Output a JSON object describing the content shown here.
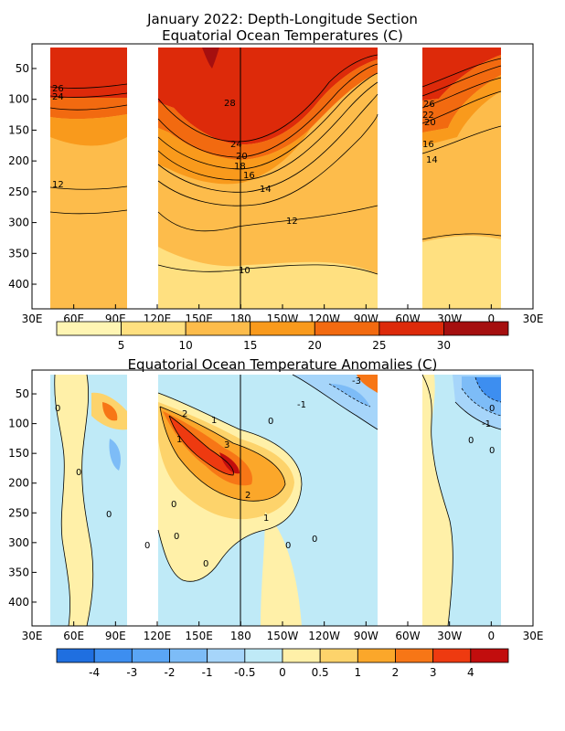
{
  "chart_data": [
    {
      "type": "heatmap",
      "title": "January 2022: Depth-Longitude Section",
      "subtitle": "Equatorial Ocean Temperatures (C)",
      "x_ticks": [
        "30E",
        "60E",
        "90E",
        "120E",
        "150E",
        "180",
        "150W",
        "120W",
        "90W",
        "60W",
        "30W",
        "0",
        "30E"
      ],
      "y_ticks": [
        50,
        100,
        150,
        200,
        250,
        300,
        350,
        400
      ],
      "ylim": [
        440,
        10
      ],
      "colorbar": {
        "ticks": [
          "5",
          "10",
          "15",
          "20",
          "25",
          "30"
        ],
        "colors": [
          "#fff5b3",
          "#ffe080",
          "#fdbc4b",
          "#f99a1c",
          "#f26a10",
          "#dd2a0a",
          "#a50f0f"
        ]
      },
      "contour_labels": [
        "26",
        "24",
        "12",
        "28",
        "24",
        "20",
        "18",
        "16",
        "14",
        "12",
        "10",
        "26",
        "22",
        "20",
        "16",
        "14"
      ]
    },
    {
      "type": "heatmap",
      "title": "Equatorial Ocean Temperature Anomalies (C)",
      "x_ticks": [
        "30E",
        "60E",
        "90E",
        "120E",
        "150E",
        "180",
        "150W",
        "120W",
        "90W",
        "60W",
        "30W",
        "0",
        "30E"
      ],
      "y_ticks": [
        50,
        100,
        150,
        200,
        250,
        300,
        350,
        400
      ],
      "ylim": [
        440,
        10
      ],
      "colorbar": {
        "ticks": [
          "-4",
          "-3",
          "-2",
          "-1",
          "-0.5",
          "0",
          "0.5",
          "1",
          "2",
          "3",
          "4"
        ],
        "colors": [
          "#1f6fe0",
          "#3d8ef0",
          "#5aa5f5",
          "#7dbcf7",
          "#a6d5fa",
          "#bfeaf7",
          "#fff0a8",
          "#fdd36b",
          "#fba72a",
          "#f77616",
          "#ee3a10",
          "#c20d0d"
        ]
      },
      "contour_labels": [
        "-3",
        "-1",
        "0",
        "2",
        "1",
        "0",
        "1",
        "3",
        "0",
        "-1",
        "0",
        "0",
        "0",
        "2",
        "0",
        "0",
        "1",
        "0",
        "0",
        "0",
        "0",
        "0"
      ]
    }
  ]
}
